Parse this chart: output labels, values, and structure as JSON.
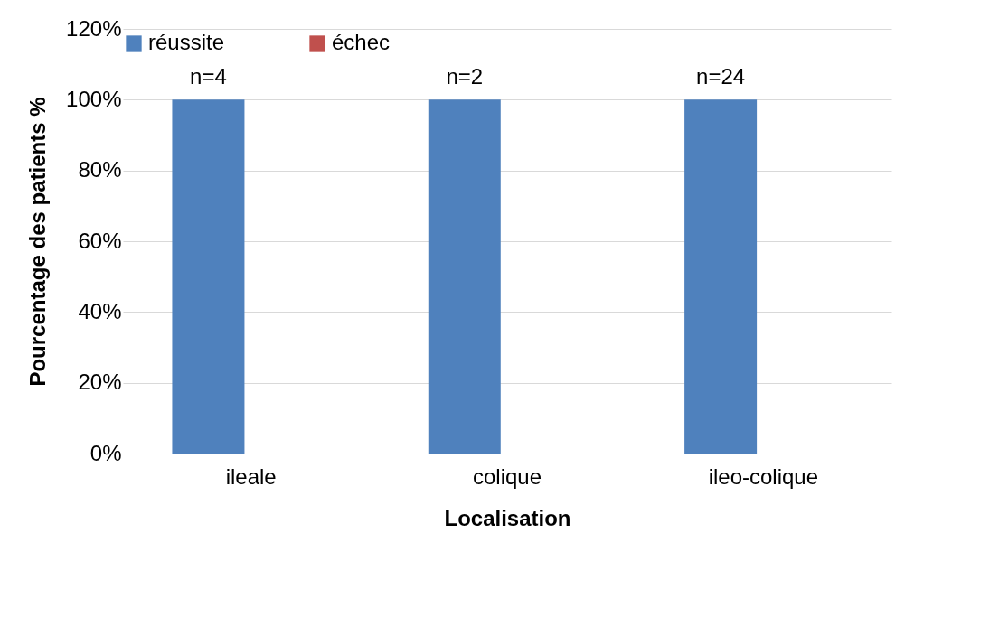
{
  "chart_data": {
    "type": "bar",
    "xlabel": "Localisation",
    "ylabel": "Pourcentage des patients %",
    "categories": [
      "ileale",
      "colique",
      "ileo-colique"
    ],
    "series": [
      {
        "name": "réussite",
        "color": "#4f81bd",
        "values": [
          100,
          100,
          100
        ]
      },
      {
        "name": "échec",
        "color": "#c0504d",
        "values": [
          0,
          0,
          0
        ]
      }
    ],
    "ylim": [
      0,
      120
    ],
    "yticks": [
      {
        "value": 0,
        "label": "0%"
      },
      {
        "value": 20,
        "label": "20%"
      },
      {
        "value": 40,
        "label": "40%"
      },
      {
        "value": 60,
        "label": "60%"
      },
      {
        "value": 80,
        "label": "80%"
      },
      {
        "value": 100,
        "label": "100%"
      },
      {
        "value": 120,
        "label": "120%"
      }
    ],
    "annotations": [
      "n=4",
      "n=2",
      "n=24"
    ],
    "grid": "y",
    "legend": "top"
  }
}
